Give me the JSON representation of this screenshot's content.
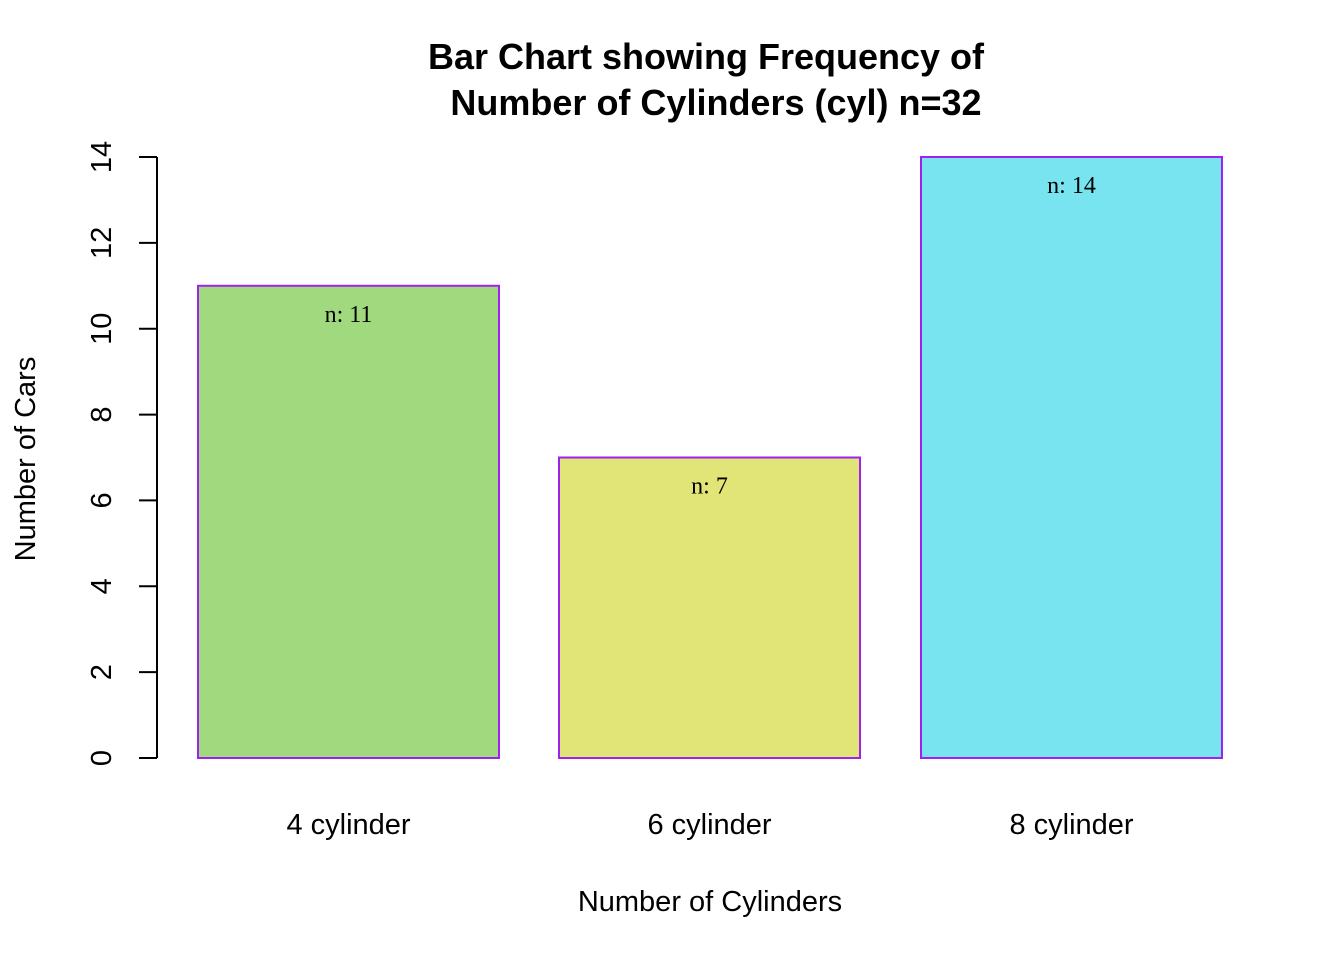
{
  "chart_data": {
    "type": "bar",
    "title": "Bar Chart showing Frequency of\nNumber of Cylinders (cyl) n=32",
    "xlabel": "Number of Cylinders",
    "ylabel": "Number of Cars",
    "categories": [
      "4 cylinder",
      "6 cylinder",
      "8 cylinder"
    ],
    "values": [
      11,
      7,
      14
    ],
    "data_labels": [
      "n: 11",
      "n: 7",
      "n: 14"
    ],
    "ylim": [
      0,
      14
    ],
    "yticks": [
      0,
      2,
      4,
      6,
      8,
      10,
      12,
      14
    ],
    "colors": [
      "#a1d97e",
      "#e1e477",
      "#78e4ef"
    ],
    "bar_border_color": "#a020f0",
    "grid": false,
    "legend": "none"
  }
}
